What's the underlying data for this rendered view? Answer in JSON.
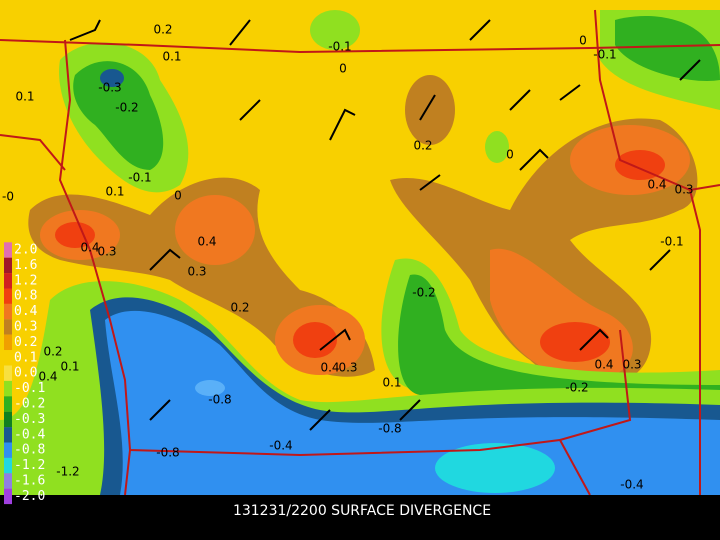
{
  "title": "131231/2200 SURFACE DIVERGENCE",
  "colorbar": {
    "levels": [
      "2.0",
      "1.6",
      "1.2",
      "0.8",
      "0.4",
      "0.3",
      "0.2",
      "0.1",
      "0.0",
      "-0.1",
      "-0.2",
      "-0.3",
      "-0.4",
      "-0.8",
      "-1.2",
      "-1.6",
      "-2.0"
    ],
    "colors": [
      "#e070b0",
      "#a01828",
      "#d02020",
      "#f04010",
      "#f07820",
      "#c08020",
      "#f0a000",
      "#f8d000",
      "#f8e040",
      "#90e020",
      "#30b020",
      "#108020",
      "#185890",
      "#3090f0",
      "#20d8e0",
      "#9080e0",
      "#a040e0"
    ]
  },
  "contour_labels": [
    "0.2",
    "0.1",
    "0.1",
    "-0.3",
    "-0.2",
    "-0.1",
    "0.1",
    "0",
    "-0",
    "0.4",
    "0.3",
    "0.4",
    "0.3",
    "0.2",
    "0.4",
    "0.3",
    "-0.2",
    "0.1",
    "-0.8",
    "-0.8",
    "-0.4",
    "-0.8",
    "-0.1",
    "0",
    "0.2",
    "0",
    "0.4",
    "0.3",
    "-0.1",
    "0.4",
    "0.3",
    "-0.2",
    "-0.4",
    "-0.1",
    "0",
    "-1.2",
    "0.2",
    "0.1",
    "0.4"
  ]
}
